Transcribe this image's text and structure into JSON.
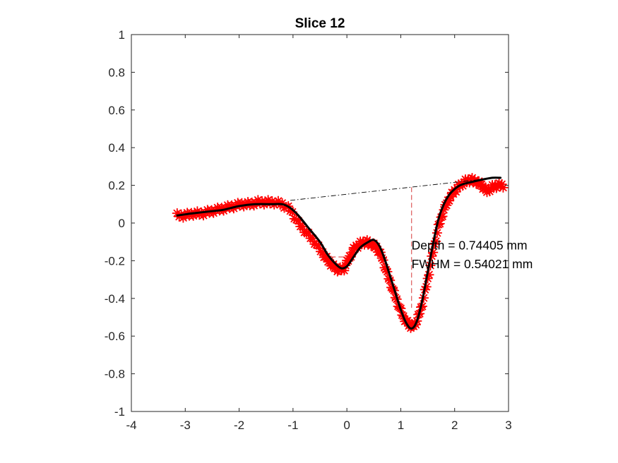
{
  "chart_data": {
    "type": "line",
    "title": "Slice 12",
    "xlabel": "",
    "ylabel": "",
    "xlim": [
      -4,
      3
    ],
    "ylim": [
      -1,
      1
    ],
    "x_ticks": [
      -4,
      -3,
      -2,
      -1,
      0,
      1,
      2,
      3
    ],
    "x_tick_labels": [
      "-4",
      "-3",
      "-2",
      "-1",
      "0",
      "1",
      "2",
      "3"
    ],
    "y_ticks": [
      -1,
      -0.8,
      -0.6,
      -0.4,
      -0.2,
      0,
      0.2,
      0.4,
      0.6,
      0.8,
      1
    ],
    "y_tick_labels": [
      "-1",
      "-0.8",
      "-0.6",
      "-0.4",
      "-0.2",
      "0",
      "0.2",
      "0.4",
      "0.6",
      "0.8",
      "1"
    ],
    "grid": false,
    "colors": {
      "markers": "#ff0000",
      "fit": "#000000",
      "baseline": "#000000",
      "depth_line": "#e06666",
      "axes": "#262626"
    },
    "series": [
      {
        "style": "red-star-markers",
        "x": [
          -3.15,
          -3.0,
          -2.85,
          -2.7,
          -2.55,
          -2.4,
          -2.25,
          -2.1,
          -1.95,
          -1.8,
          -1.65,
          -1.5,
          -1.35,
          -1.2,
          -1.05,
          -0.9,
          -0.75,
          -0.6,
          -0.45,
          -0.35,
          -0.25,
          -0.15,
          -0.05,
          0.05,
          0.15,
          0.25,
          0.35,
          0.45,
          0.55,
          0.65,
          0.75,
          0.85,
          0.95,
          1.05,
          1.15,
          1.22,
          1.3,
          1.4,
          1.5,
          1.6,
          1.7,
          1.8,
          1.9,
          2.0,
          2.1,
          2.2,
          2.3,
          2.4,
          2.5,
          2.6,
          2.7,
          2.8,
          2.9
        ],
        "y": [
          0.04,
          0.04,
          0.05,
          0.05,
          0.06,
          0.07,
          0.08,
          0.09,
          0.1,
          0.1,
          0.11,
          0.11,
          0.11,
          0.1,
          0.07,
          0.0,
          -0.05,
          -0.1,
          -0.16,
          -0.2,
          -0.23,
          -0.25,
          -0.24,
          -0.18,
          -0.13,
          -0.11,
          -0.1,
          -0.11,
          -0.13,
          -0.18,
          -0.27,
          -0.35,
          -0.43,
          -0.5,
          -0.54,
          -0.55,
          -0.52,
          -0.43,
          -0.3,
          -0.15,
          -0.02,
          0.07,
          0.13,
          0.17,
          0.2,
          0.22,
          0.23,
          0.22,
          0.2,
          0.17,
          0.19,
          0.2,
          0.2
        ]
      },
      {
        "style": "black-fit-line",
        "x": [
          -3.15,
          -2.9,
          -2.6,
          -2.3,
          -2.0,
          -1.7,
          -1.4,
          -1.2,
          -1.05,
          -0.9,
          -0.7,
          -0.5,
          -0.35,
          -0.2,
          -0.1,
          0.0,
          0.1,
          0.25,
          0.4,
          0.5,
          0.6,
          0.7,
          0.8,
          0.9,
          1.0,
          1.1,
          1.2,
          1.3,
          1.4,
          1.5,
          1.6,
          1.7,
          1.8,
          1.9,
          2.0,
          2.1,
          2.2,
          2.35,
          2.5,
          2.7,
          2.85
        ],
        "y": [
          0.04,
          0.05,
          0.06,
          0.07,
          0.09,
          0.1,
          0.1,
          0.1,
          0.08,
          0.04,
          -0.03,
          -0.1,
          -0.17,
          -0.22,
          -0.24,
          -0.23,
          -0.19,
          -0.13,
          -0.1,
          -0.09,
          -0.12,
          -0.19,
          -0.28,
          -0.37,
          -0.46,
          -0.53,
          -0.56,
          -0.52,
          -0.41,
          -0.26,
          -0.11,
          0.02,
          0.1,
          0.15,
          0.18,
          0.2,
          0.21,
          0.22,
          0.23,
          0.24,
          0.24
        ]
      }
    ],
    "baseline": {
      "x": [
        -1.05,
        2.45
      ],
      "y": [
        0.12,
        0.23
      ]
    },
    "depth_line": {
      "x": [
        1.2,
        1.2
      ],
      "y": [
        0.19,
        -0.45
      ]
    },
    "fwhm_line": {
      "x": [
        -0.3,
        0.0
      ],
      "y": [
        -0.18,
        -0.18
      ]
    },
    "annotations": [
      {
        "text": "Depth = 0.74405 mm",
        "x": 1.2,
        "y": -0.14
      },
      {
        "text": "FWHM = 0.54021 mm",
        "x": 1.2,
        "y": -0.24
      }
    ]
  }
}
